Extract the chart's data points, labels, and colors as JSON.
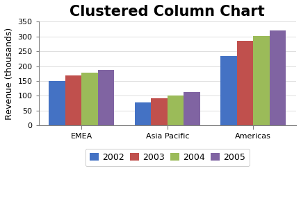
{
  "title": "Clustered Column Chart",
  "categories": [
    "EMEA",
    "Asia Pacific",
    "Americas"
  ],
  "series": {
    "2002": [
      150,
      78,
      235
    ],
    "2003": [
      168,
      91,
      286
    ],
    "2004": [
      179,
      100,
      302
    ],
    "2005": [
      188,
      112,
      320
    ]
  },
  "series_labels": [
    "2002",
    "2003",
    "2004",
    "2005"
  ],
  "colors": [
    "#4472C4",
    "#C0504D",
    "#9BBB59",
    "#8064A2"
  ],
  "ylabel": "Revenue (thousands)",
  "ylim": [
    0,
    350
  ],
  "yticks": [
    0,
    50,
    100,
    150,
    200,
    250,
    300,
    350
  ],
  "title_fontsize": 15,
  "axis_fontsize": 9,
  "tick_fontsize": 8,
  "legend_fontsize": 9,
  "background_color": "#FFFFFF"
}
